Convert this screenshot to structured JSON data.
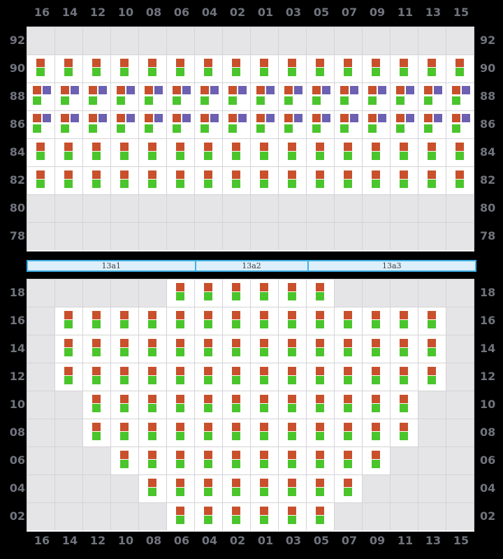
{
  "columns": [
    "16",
    "14",
    "12",
    "10",
    "08",
    "06",
    "04",
    "02",
    "01",
    "03",
    "05",
    "07",
    "09",
    "11",
    "13",
    "15"
  ],
  "top_grid": {
    "rows": [
      {
        "label": "92",
        "cells": "empty"
      },
      {
        "label": "90",
        "cells": "og"
      },
      {
        "label": "88",
        "cells": "ogp"
      },
      {
        "label": "86",
        "cells": "ogp"
      },
      {
        "label": "84",
        "cells": "og"
      },
      {
        "label": "82",
        "cells": "og"
      },
      {
        "label": "80",
        "cells": "empty"
      },
      {
        "label": "78",
        "cells": "empty"
      }
    ]
  },
  "section_bar": {
    "segments": [
      {
        "label": "13a1",
        "span": 6
      },
      {
        "label": "13a2",
        "span": 4
      },
      {
        "label": "13a3",
        "span": 6
      }
    ]
  },
  "bottom_grid": {
    "rows": [
      {
        "label": "18",
        "fill": "og",
        "start": 5,
        "end": 10
      },
      {
        "label": "16",
        "fill": "og",
        "start": 1,
        "end": 14
      },
      {
        "label": "14",
        "fill": "og",
        "start": 1,
        "end": 14
      },
      {
        "label": "12",
        "fill": "og",
        "start": 1,
        "end": 14
      },
      {
        "label": "10",
        "fill": "og",
        "start": 2,
        "end": 13
      },
      {
        "label": "08",
        "fill": "og",
        "start": 2,
        "end": 13
      },
      {
        "label": "06",
        "fill": "og",
        "start": 3,
        "end": 12
      },
      {
        "label": "04",
        "fill": "og",
        "start": 4,
        "end": 11
      },
      {
        "label": "02",
        "fill": "og",
        "start": 5,
        "end": 10
      }
    ]
  },
  "colors": {
    "background": "#000000",
    "grid_line": "#d4d4d7",
    "cell_available": "#ffffff",
    "cell_empty": "#e5e5e7",
    "marker_orange": "#c8502c",
    "marker_green": "#4bc52c",
    "marker_purple": "#6b60b2",
    "label_text": "#70747d",
    "bar_fill": "#ddeffb",
    "bar_border": "#41b1e6",
    "bar_text": "#3f3f3f"
  }
}
